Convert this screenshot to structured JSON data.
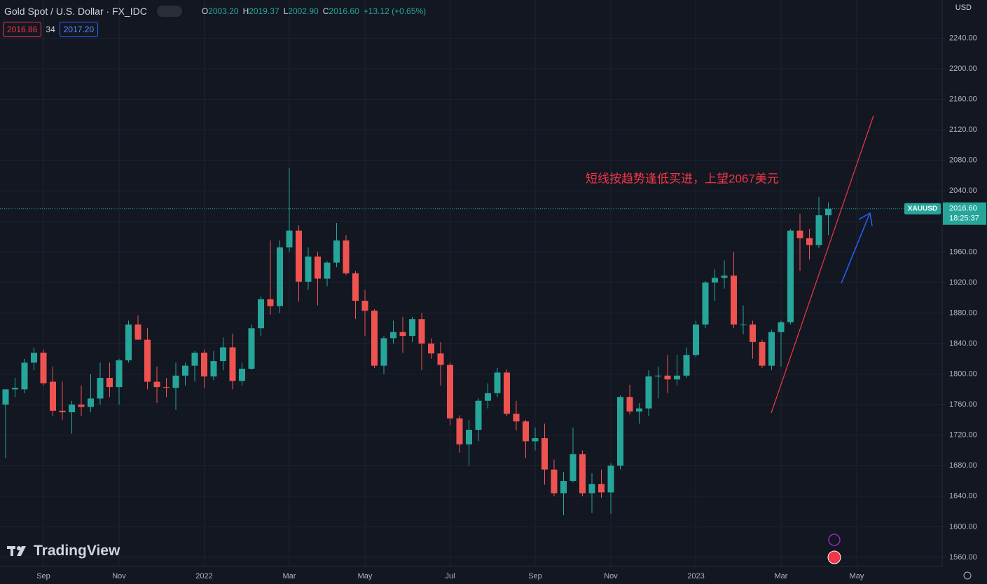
{
  "header": {
    "title": "Gold Spot / U.S. Dollar · FX_IDC",
    "ohlc": [
      {
        "key": "O",
        "value": "2003.20"
      },
      {
        "key": "H",
        "value": "2019.37"
      },
      {
        "key": "L",
        "value": "2002.90"
      },
      {
        "key": "C",
        "value": "2016.60"
      }
    ],
    "change": "+13.12 (+0.65%)",
    "sell_price": "2016.86",
    "spread": "34",
    "buy_price": "2017.20",
    "currency": "USD"
  },
  "branding": "TradingView",
  "chart_data": {
    "type": "candlestick",
    "annotation": "短线按趋势逢低买进，上望2067美元",
    "symbol": "XAUUSD",
    "last_price_label": "2016.60",
    "countdown": "18:25:37",
    "up_color": "#26a69a",
    "down_color": "#ef5350",
    "grid": true,
    "ylim": [
      1548,
      2290
    ],
    "yticks": [
      {
        "value": 1560,
        "label": "1560.00"
      },
      {
        "value": 1600,
        "label": "1600.00"
      },
      {
        "value": 1640,
        "label": "1640.00"
      },
      {
        "value": 1680,
        "label": "1680.00"
      },
      {
        "value": 1720,
        "label": "1720.00"
      },
      {
        "value": 1760,
        "label": "1760.00"
      },
      {
        "value": 1800,
        "label": "1800.00"
      },
      {
        "value": 1840,
        "label": "1840.00"
      },
      {
        "value": 1880,
        "label": "1880.00"
      },
      {
        "value": 1920,
        "label": "1920.00"
      },
      {
        "value": 1960,
        "label": "1960.00"
      },
      {
        "value": 2000,
        "label": "2000.00"
      },
      {
        "value": 2040,
        "label": "2040.00"
      },
      {
        "value": 2080,
        "label": "2080.00"
      },
      {
        "value": 2120,
        "label": "2120.00"
      },
      {
        "value": 2160,
        "label": "2160.00"
      },
      {
        "value": 2200,
        "label": "2200.00"
      },
      {
        "value": 2240,
        "label": "2240.00"
      }
    ],
    "categories": [
      null,
      null,
      null,
      null,
      "Sep",
      null,
      null,
      null,
      null,
      null,
      null,
      null,
      "Nov",
      null,
      null,
      null,
      null,
      null,
      null,
      null,
      null,
      "2022",
      null,
      null,
      null,
      null,
      null,
      null,
      null,
      null,
      "Mar",
      null,
      null,
      null,
      null,
      null,
      null,
      null,
      "May",
      null,
      null,
      null,
      null,
      null,
      null,
      null,
      null,
      "Jul",
      null,
      null,
      null,
      null,
      null,
      null,
      null,
      null,
      "Sep",
      null,
      null,
      null,
      null,
      null,
      null,
      null,
      "Nov",
      null,
      null,
      null,
      null,
      null,
      null,
      null,
      null,
      "2023",
      null,
      null,
      null,
      null,
      null,
      null,
      null,
      null,
      "Mar",
      null,
      null,
      null,
      null,
      null,
      null,
      null,
      "May",
      null
    ],
    "open": [
      1760,
      1780,
      1780,
      1815,
      1828,
      1790,
      1752,
      1750,
      1760,
      1757,
      1768,
      1795,
      1783,
      1818,
      1865,
      1845,
      1790,
      1783,
      1782,
      1798,
      1811,
      1828,
      1797,
      1817,
      1835,
      1791,
      1807,
      1860,
      1898,
      1889,
      1966,
      1988,
      1921,
      1954,
      1925,
      1946,
      1975,
      1932,
      1896,
      1883,
      1811,
      1847,
      1855,
      1850,
      1872,
      1840,
      1827,
      1812,
      1742,
      1708,
      1727,
      1765,
      1775,
      1802,
      1748,
      1738,
      1712,
      1716,
      1675,
      1644,
      1660,
      1695,
      1644,
      1656,
      1645,
      1680,
      1770,
      1751,
      1755,
      1797,
      1798,
      1793,
      1798,
      1825,
      1865,
      1920,
      1926,
      1929,
      1865,
      1865,
      1842,
      1811,
      1855,
      1868,
      1988,
      1978,
      1969,
      2008,
      null,
      null,
      null,
      null
    ],
    "high": [
      1780,
      1795,
      1820,
      1835,
      1832,
      1810,
      1790,
      1765,
      1785,
      1800,
      1815,
      1815,
      1820,
      1870,
      1877,
      1860,
      1810,
      1795,
      1815,
      1815,
      1830,
      1832,
      1830,
      1848,
      1853,
      1815,
      1865,
      1902,
      1975,
      1975,
      2070,
      1995,
      1966,
      1960,
      1948,
      1998,
      1982,
      1935,
      1910,
      1885,
      1850,
      1870,
      1875,
      1875,
      1880,
      1847,
      1842,
      1815,
      1746,
      1740,
      1768,
      1788,
      1808,
      1806,
      1765,
      1740,
      1730,
      1735,
      1688,
      1672,
      1730,
      1700,
      1670,
      1675,
      1683,
      1772,
      1786,
      1762,
      1805,
      1810,
      1825,
      1825,
      1835,
      1870,
      1922,
      1937,
      1949,
      1960,
      1890,
      1870,
      1845,
      1858,
      1870,
      1990,
      2010,
      1990,
      2032,
      2025,
      null,
      null,
      null,
      null
    ],
    "low": [
      1690,
      1770,
      1775,
      1805,
      1785,
      1745,
      1740,
      1722,
      1745,
      1750,
      1760,
      1770,
      1760,
      1815,
      1845,
      1780,
      1762,
      1770,
      1753,
      1785,
      1790,
      1782,
      1792,
      1805,
      1780,
      1785,
      1805,
      1850,
      1878,
      1880,
      1960,
      1895,
      1910,
      1890,
      1915,
      1940,
      1930,
      1872,
      1850,
      1808,
      1800,
      1840,
      1828,
      1842,
      1805,
      1820,
      1785,
      1733,
      1697,
      1680,
      1712,
      1755,
      1770,
      1745,
      1726,
      1690,
      1700,
      1655,
      1640,
      1615,
      1658,
      1640,
      1618,
      1638,
      1617,
      1675,
      1747,
      1735,
      1745,
      1768,
      1775,
      1785,
      1795,
      1822,
      1860,
      1896,
      1912,
      1860,
      1852,
      1820,
      1808,
      1805,
      1810,
      1865,
      1935,
      1950,
      1965,
      1982,
      null,
      null,
      null,
      null
    ],
    "close": [
      1780,
      1782,
      1815,
      1828,
      1788,
      1752,
      1750,
      1760,
      1757,
      1768,
      1795,
      1783,
      1818,
      1865,
      1845,
      1790,
      1783,
      1782,
      1798,
      1811,
      1828,
      1797,
      1817,
      1835,
      1791,
      1807,
      1860,
      1898,
      1889,
      1966,
      1988,
      1921,
      1954,
      1925,
      1946,
      1975,
      1932,
      1896,
      1883,
      1811,
      1847,
      1855,
      1850,
      1872,
      1840,
      1827,
      1812,
      1742,
      1708,
      1727,
      1765,
      1775,
      1802,
      1748,
      1738,
      1712,
      1716,
      1675,
      1644,
      1660,
      1695,
      1644,
      1656,
      1645,
      1680,
      1770,
      1751,
      1755,
      1797,
      1798,
      1793,
      1798,
      1825,
      1865,
      1920,
      1926,
      1929,
      1865,
      1865,
      1842,
      1811,
      1855,
      1868,
      1988,
      1978,
      1969,
      2008,
      2016.6,
      null,
      null,
      null,
      null
    ]
  }
}
